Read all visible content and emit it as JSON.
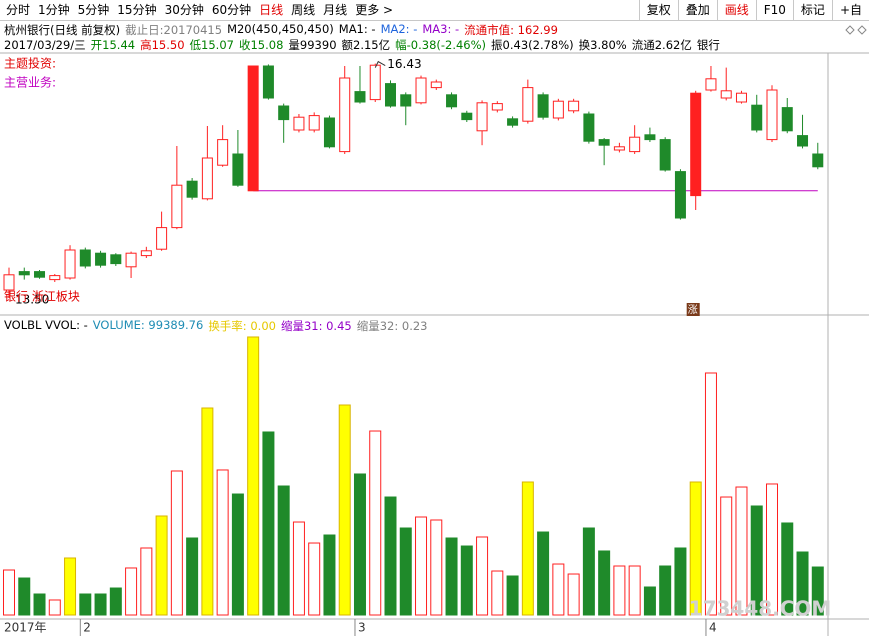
{
  "toolbar": {
    "tabs": [
      "分时",
      "1分钟",
      "5分钟",
      "15分钟",
      "30分钟",
      "60分钟",
      "日线",
      "周线",
      "月线",
      "更多 >"
    ],
    "active_tab": 6,
    "buttons": [
      "复权",
      "叠加",
      "画线",
      "F10",
      "标记",
      "+自"
    ],
    "active_button": 2
  },
  "watermark": "173448.COM",
  "chart_data": [
    {
      "type": "candlestick",
      "info_lines": [
        [
          {
            "text": "杭州银行(日线 前复权)",
            "color": "#000000"
          },
          {
            "text": "截止日:20170415",
            "color": "#808080"
          },
          {
            "text": "M20(450,450,450)",
            "color": "#000000"
          },
          {
            "text": "MA1: -",
            "color": "#000000"
          },
          {
            "text": "MA2: -",
            "color": "#1e64dc"
          },
          {
            "text": "MA3: -",
            "color": "#9400c8"
          },
          {
            "text": "流通市值: 162.99",
            "color": "#e00000"
          }
        ],
        [
          {
            "text": "2017/03/29/三",
            "color": "#000000"
          },
          {
            "text": "开15.44",
            "color": "#008000"
          },
          {
            "text": "高15.50",
            "color": "#e00000"
          },
          {
            "text": "低15.07",
            "color": "#008000"
          },
          {
            "text": "收15.08",
            "color": "#008000"
          },
          {
            "text": "量99390",
            "color": "#000000"
          },
          {
            "text": "额2.15亿",
            "color": "#000000"
          },
          {
            "text": "幅-0.38(-2.46%)",
            "color": "#008000"
          },
          {
            "text": "振0.43(2.78%)",
            "color": "#000000"
          },
          {
            "text": "换3.80%",
            "color": "#000000"
          },
          {
            "text": "流通2.62亿",
            "color": "#000000"
          },
          {
            "text": "银行",
            "color": "#000000"
          }
        ]
      ],
      "topic_labels": [
        {
          "text": "主题投资:",
          "color": "#e00000"
        },
        {
          "text": "主营业务:",
          "color": "#c000c0"
        }
      ],
      "sector_label": {
        "text": "银行 浙江板块",
        "color": "#e00000"
      },
      "categories": [
        "2017年",
        null,
        null,
        null,
        null,
        "2",
        null,
        null,
        null,
        null,
        null,
        null,
        null,
        null,
        null,
        null,
        null,
        null,
        null,
        null,
        null,
        null,
        null,
        "3",
        null,
        null,
        null,
        null,
        null,
        null,
        null,
        null,
        null,
        null,
        null,
        null,
        null,
        null,
        null,
        null,
        null,
        null,
        null,
        null,
        null,
        null,
        "4",
        null,
        null,
        null,
        null,
        null,
        null,
        null
      ],
      "open": [
        13.6,
        13.83,
        13.83,
        13.73,
        13.75,
        14.1,
        14.06,
        14.04,
        13.89,
        14.03,
        14.11,
        14.38,
        14.96,
        14.74,
        15.16,
        15.3,
        14.84,
        16.4,
        15.9,
        15.6,
        15.6,
        15.75,
        15.33,
        16.08,
        15.98,
        16.18,
        16.04,
        15.94,
        16.13,
        16.04,
        15.81,
        15.59,
        15.85,
        15.74,
        15.71,
        16.04,
        15.75,
        15.84,
        15.8,
        15.48,
        15.35,
        15.33,
        15.54,
        15.48,
        15.08,
        14.78,
        16.1,
        16.0,
        15.95,
        15.91,
        15.48,
        15.88,
        15.53,
        15.3
      ],
      "high": [
        13.88,
        13.88,
        13.85,
        13.8,
        14.16,
        14.13,
        14.09,
        14.06,
        14.08,
        14.14,
        14.58,
        15.4,
        15.0,
        15.65,
        15.66,
        15.6,
        16.4,
        16.42,
        15.93,
        15.8,
        15.82,
        15.78,
        16.4,
        16.4,
        16.43,
        16.22,
        16.07,
        16.28,
        16.23,
        16.07,
        15.84,
        15.97,
        15.96,
        15.77,
        16.23,
        16.07,
        15.99,
        15.99,
        15.83,
        15.5,
        15.44,
        15.66,
        15.63,
        15.51,
        15.11,
        16.09,
        16.4,
        16.38,
        16.09,
        16.04,
        16.16,
        16.0,
        15.79,
        15.44
      ],
      "low": [
        13.5,
        13.73,
        13.74,
        13.7,
        13.73,
        13.87,
        13.88,
        13.9,
        13.75,
        14.0,
        14.09,
        14.36,
        14.73,
        14.72,
        15.14,
        14.89,
        14.84,
        15.98,
        15.44,
        15.57,
        15.57,
        15.37,
        15.3,
        15.93,
        15.95,
        15.88,
        15.66,
        15.92,
        16.1,
        15.86,
        15.7,
        15.41,
        15.82,
        15.63,
        15.68,
        15.73,
        15.72,
        15.81,
        15.43,
        15.16,
        15.32,
        15.3,
        15.45,
        15.08,
        14.48,
        14.6,
        16.08,
        15.97,
        15.93,
        15.57,
        15.45,
        15.56,
        15.37,
        15.11
      ],
      "close": [
        13.79,
        13.79,
        13.76,
        13.78,
        14.1,
        13.9,
        13.91,
        13.93,
        14.06,
        14.09,
        14.38,
        14.91,
        14.76,
        15.25,
        15.48,
        14.91,
        16.4,
        16.0,
        15.73,
        15.76,
        15.78,
        15.39,
        16.25,
        15.95,
        16.41,
        15.9,
        15.9,
        16.25,
        16.2,
        15.89,
        15.73,
        15.94,
        15.93,
        15.66,
        16.13,
        15.76,
        15.96,
        15.96,
        15.46,
        15.41,
        15.39,
        15.51,
        15.48,
        15.1,
        14.5,
        16.06,
        16.24,
        16.09,
        16.06,
        15.6,
        16.1,
        15.59,
        15.4,
        15.14
      ],
      "ylim": [
        13.475,
        16.725
      ],
      "up_color": "#ff2020",
      "down_color": "#1f8a2a",
      "solid_up": [
        16,
        45
      ],
      "annotations": [
        {
          "index": 24,
          "field": "high",
          "label": "16.43"
        },
        {
          "index": 0,
          "field": "low",
          "label": "13.50"
        }
      ],
      "markers": [
        {
          "index": 45,
          "label": "涨"
        }
      ],
      "support_line": {
        "value": 14.84,
        "from": 16,
        "color": "#c000c0"
      }
    },
    {
      "type": "bar",
      "legend_items": [
        {
          "text": "VOLBL VVOL: -",
          "color": "#000000"
        },
        {
          "text": "VOLUME: 99389.76",
          "color": "#1e8cb4"
        },
        {
          "text": "换手率: 0.00",
          "color": "#e6c800"
        },
        {
          "text": "缩量31: 0.45",
          "color": "#9400c8"
        },
        {
          "text": "缩量32: 0.23",
          "color": "#808080"
        }
      ],
      "values": [
        93200,
        76600,
        43500,
        31100,
        118100,
        43500,
        43500,
        55900,
        97400,
        138800,
        205100,
        298300,
        159500,
        428800,
        300400,
        250600,
        575900,
        379100,
        267200,
        192600,
        149100,
        165700,
        435000,
        292100,
        381100,
        244400,
        180200,
        203000,
        196800,
        159500,
        142900,
        161600,
        91100,
        80800,
        275500,
        171900,
        105600,
        84900,
        180200,
        132600,
        101500,
        101500,
        58000,
        101500,
        138800,
        275500,
        501300,
        244400,
        265100,
        225800,
        271400,
        190600,
        130500,
        99390
      ],
      "ylim": [
        0,
        580000
      ],
      "highlight": [
        4,
        10,
        13,
        16,
        22,
        34,
        45
      ],
      "highlight_color": "#ffff00"
    }
  ]
}
